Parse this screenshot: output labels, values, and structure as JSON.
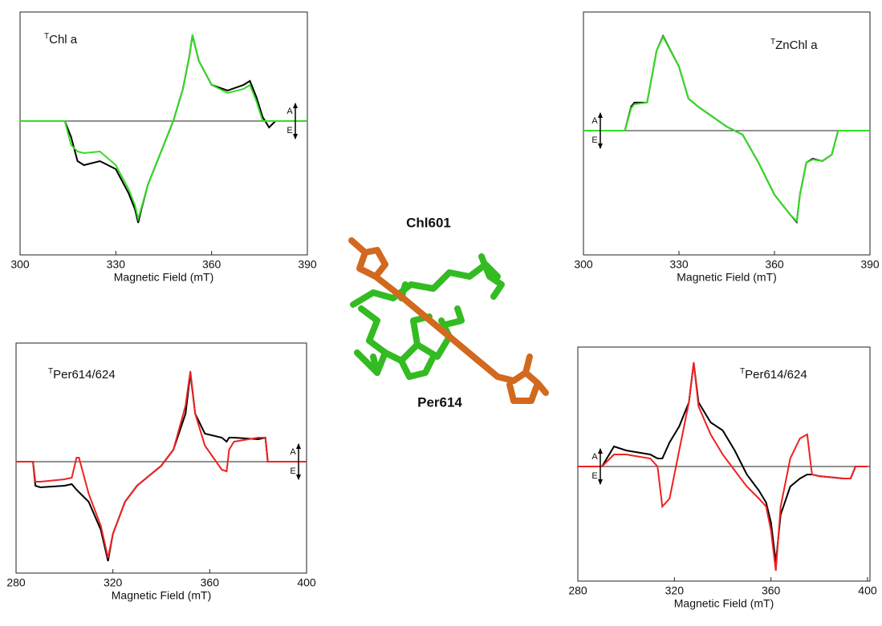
{
  "chart_data": [
    {
      "type": "line",
      "title_sup": "T",
      "title": "Chl a",
      "xlabel": "Magnetic Field (mT)",
      "x": [
        300,
        314,
        316,
        318,
        320,
        325,
        330,
        334,
        336,
        337,
        338,
        340,
        344,
        348,
        351,
        353,
        354,
        356,
        360,
        365,
        370,
        372,
        374,
        376,
        378,
        380,
        390
      ],
      "series": [
        {
          "color": "#000000",
          "values": [
            0,
            0,
            -0.2,
            -0.5,
            -0.55,
            -0.5,
            -0.6,
            -0.9,
            -1.1,
            -1.27,
            -1.1,
            -0.8,
            -0.4,
            0,
            0.4,
            0.8,
            1.07,
            0.75,
            0.45,
            0.38,
            0.45,
            0.5,
            0.3,
            0.05,
            -0.08,
            0,
            0
          ]
        },
        {
          "color": "#33dd22",
          "values": [
            0,
            0,
            -0.3,
            -0.38,
            -0.4,
            -0.38,
            -0.55,
            -0.85,
            -1.05,
            -1.22,
            -1.08,
            -0.8,
            -0.4,
            0,
            0.4,
            0.8,
            1.08,
            0.75,
            0.45,
            0.35,
            0.4,
            0.45,
            0.25,
            0,
            0,
            0,
            0
          ]
        }
      ],
      "xlim": [
        300,
        390
      ],
      "xticks": [
        300,
        330,
        360,
        390
      ],
      "ylim": [
        -1.67,
        1.36
      ],
      "annotations": [
        "A",
        "E"
      ]
    },
    {
      "type": "line",
      "title_sup": "T",
      "title": "ZnChl a",
      "xlabel": "Magnetic Field (mT)",
      "x": [
        300,
        313,
        315,
        316,
        320,
        323,
        325,
        330,
        333,
        336,
        345,
        350,
        355,
        360,
        365,
        367,
        368,
        370,
        372,
        375,
        378,
        380,
        390
      ],
      "series": [
        {
          "color": "#000000",
          "values": [
            0,
            0,
            0.3,
            0.35,
            0.35,
            1.0,
            1.18,
            0.8,
            0.4,
            0.3,
            0.05,
            -0.05,
            -0.4,
            -0.8,
            -1.05,
            -1.14,
            -0.8,
            -0.4,
            -0.35,
            -0.38,
            -0.3,
            0,
            0
          ]
        },
        {
          "color": "#33dd22",
          "values": [
            0,
            0,
            0.28,
            0.33,
            0.35,
            1.0,
            1.17,
            0.8,
            0.4,
            0.3,
            0.05,
            -0.05,
            -0.4,
            -0.8,
            -1.05,
            -1.13,
            -0.8,
            -0.4,
            -0.36,
            -0.38,
            -0.3,
            0,
            0
          ]
        }
      ],
      "xlim": [
        300,
        390
      ],
      "xticks": [
        300,
        330,
        360,
        390
      ],
      "ylim": [
        -1.55,
        1.48
      ],
      "annotations": [
        "A",
        "E"
      ]
    },
    {
      "type": "line",
      "title_sup": "T",
      "title": "Per614/624",
      "xlabel": "Magnetic Field (mT)",
      "x": [
        280,
        287,
        288,
        290,
        300,
        303,
        305,
        306,
        310,
        315,
        318,
        320,
        325,
        330,
        340,
        345,
        350,
        352,
        354,
        358,
        365,
        367,
        368,
        370,
        380,
        383,
        384,
        390,
        400
      ],
      "series": [
        {
          "color": "#000000",
          "values": [
            0,
            0,
            -0.3,
            -0.32,
            -0.3,
            -0.28,
            -0.35,
            -0.38,
            -0.5,
            -0.85,
            -1.24,
            -0.9,
            -0.5,
            -0.3,
            -0.05,
            0.15,
            0.6,
            1.1,
            0.6,
            0.35,
            0.3,
            0.25,
            0.3,
            0.3,
            0.28,
            0.3,
            0,
            0,
            0
          ]
        },
        {
          "color": "#ee2222",
          "values": [
            0,
            0,
            -0.25,
            -0.25,
            -0.22,
            -0.2,
            0.05,
            0.05,
            -0.4,
            -0.8,
            -1.2,
            -0.9,
            -0.5,
            -0.3,
            -0.05,
            0.15,
            0.7,
            1.13,
            0.6,
            0.2,
            -0.1,
            -0.12,
            0.15,
            0.25,
            0.3,
            0.3,
            0,
            0,
            0
          ]
        }
      ],
      "xlim": [
        280,
        400
      ],
      "xticks": [
        280,
        320,
        360,
        400
      ],
      "ylim": [
        -1.39,
        1.48
      ],
      "annotations": [
        "A",
        "E"
      ]
    },
    {
      "type": "line",
      "title_sup": "T",
      "title": "Per614/624",
      "xlabel": "Magnetic Field (mT)",
      "x": [
        280,
        290,
        295,
        300,
        310,
        313,
        315,
        318,
        322,
        326,
        328,
        330,
        335,
        340,
        345,
        350,
        355,
        358,
        360,
        362,
        364,
        368,
        372,
        375,
        377,
        380,
        390,
        393,
        395,
        400
      ],
      "series": [
        {
          "color": "#000000",
          "values": [
            0,
            0,
            0.25,
            0.2,
            0.15,
            0.1,
            0.1,
            0.3,
            0.5,
            0.8,
            1.29,
            0.8,
            0.55,
            0.45,
            0.2,
            -0.1,
            -0.3,
            -0.45,
            -0.7,
            -1.2,
            -0.6,
            -0.25,
            -0.15,
            -0.1,
            -0.1,
            -0.12,
            -0.15,
            -0.15,
            0,
            0
          ]
        },
        {
          "color": "#ee2222",
          "values": [
            0,
            0,
            0.15,
            0.15,
            0.1,
            0,
            -0.5,
            -0.4,
            0.2,
            0.8,
            1.3,
            0.75,
            0.4,
            0.15,
            -0.05,
            -0.25,
            -0.4,
            -0.5,
            -0.8,
            -1.3,
            -0.5,
            0.1,
            0.35,
            0.4,
            -0.1,
            -0.12,
            -0.15,
            -0.15,
            0,
            0
          ]
        }
      ],
      "xlim": [
        280,
        401
      ],
      "xticks": [
        280,
        320,
        360,
        400
      ],
      "ylim": [
        -1.43,
        1.49
      ],
      "annotations": [
        "A",
        "E"
      ]
    }
  ],
  "structure": {
    "labels": [
      "Chl601",
      "Per614"
    ]
  }
}
